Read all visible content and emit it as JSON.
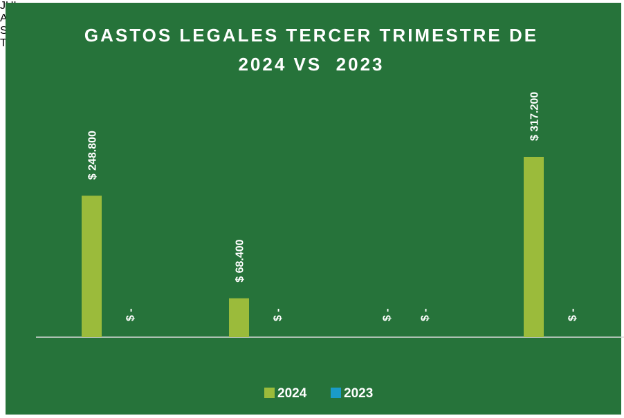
{
  "chart_data": {
    "type": "bar",
    "title": "GASTOS LEGALES TERCER TRIMESTRE DE 2024 VS  2023",
    "categories": [
      "JUL",
      "AGOS",
      "SEP",
      "TOTAL TRIMESTRE"
    ],
    "series": [
      {
        "name": "2024",
        "color": "#9bbb3b",
        "values": [
          248800,
          68400,
          0,
          317200
        ],
        "value_labels": [
          "$ 248.800",
          "$ 68.400",
          "$ -",
          "$ 317.200"
        ]
      },
      {
        "name": "2023",
        "color": "#1a9bc7",
        "values": [
          0,
          0,
          0,
          0
        ],
        "value_labels": [
          "$ -",
          "$ -",
          "$ -",
          "$ -"
        ]
      }
    ],
    "legend": "bottom"
  }
}
